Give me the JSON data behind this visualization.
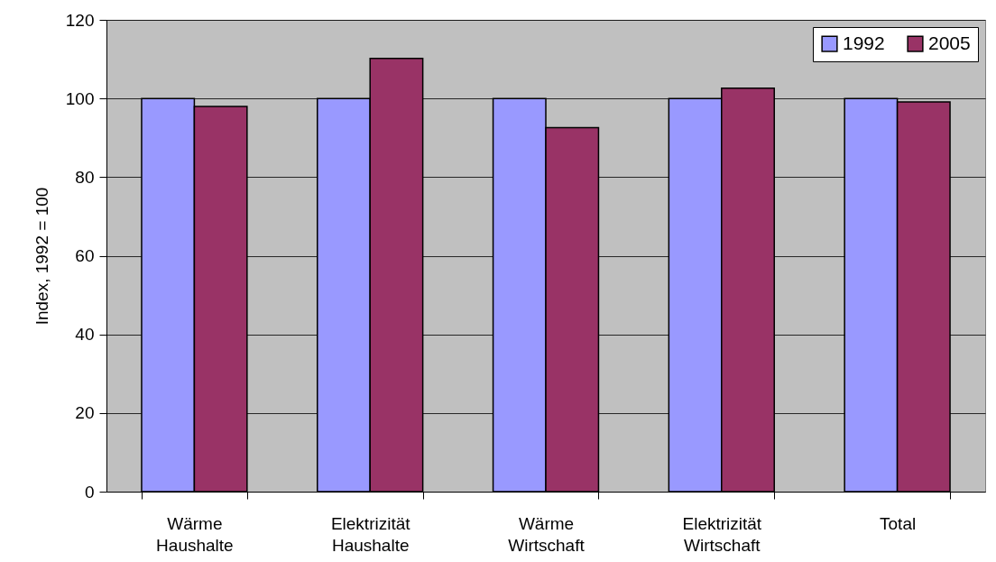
{
  "chart_data": {
    "type": "bar",
    "ylabel": "Index, 1992 = 100",
    "categories": [
      "Wärme Haushalte",
      "Elektrizität Haushalte",
      "Wärme Wirtschaft",
      "Elektrizität Wirtschaft",
      "Total"
    ],
    "series": [
      {
        "name": "1992",
        "color": "#9999ff",
        "values": [
          100,
          100,
          100,
          100,
          100
        ]
      },
      {
        "name": "2005",
        "color": "#993366",
        "values": [
          98,
          110.2,
          92.6,
          102.6,
          99.1
        ]
      }
    ],
    "ylim": [
      0,
      120
    ],
    "yticks": [
      0,
      20,
      40,
      60,
      80,
      100,
      120
    ],
    "grid": "y",
    "legend": "top right"
  }
}
